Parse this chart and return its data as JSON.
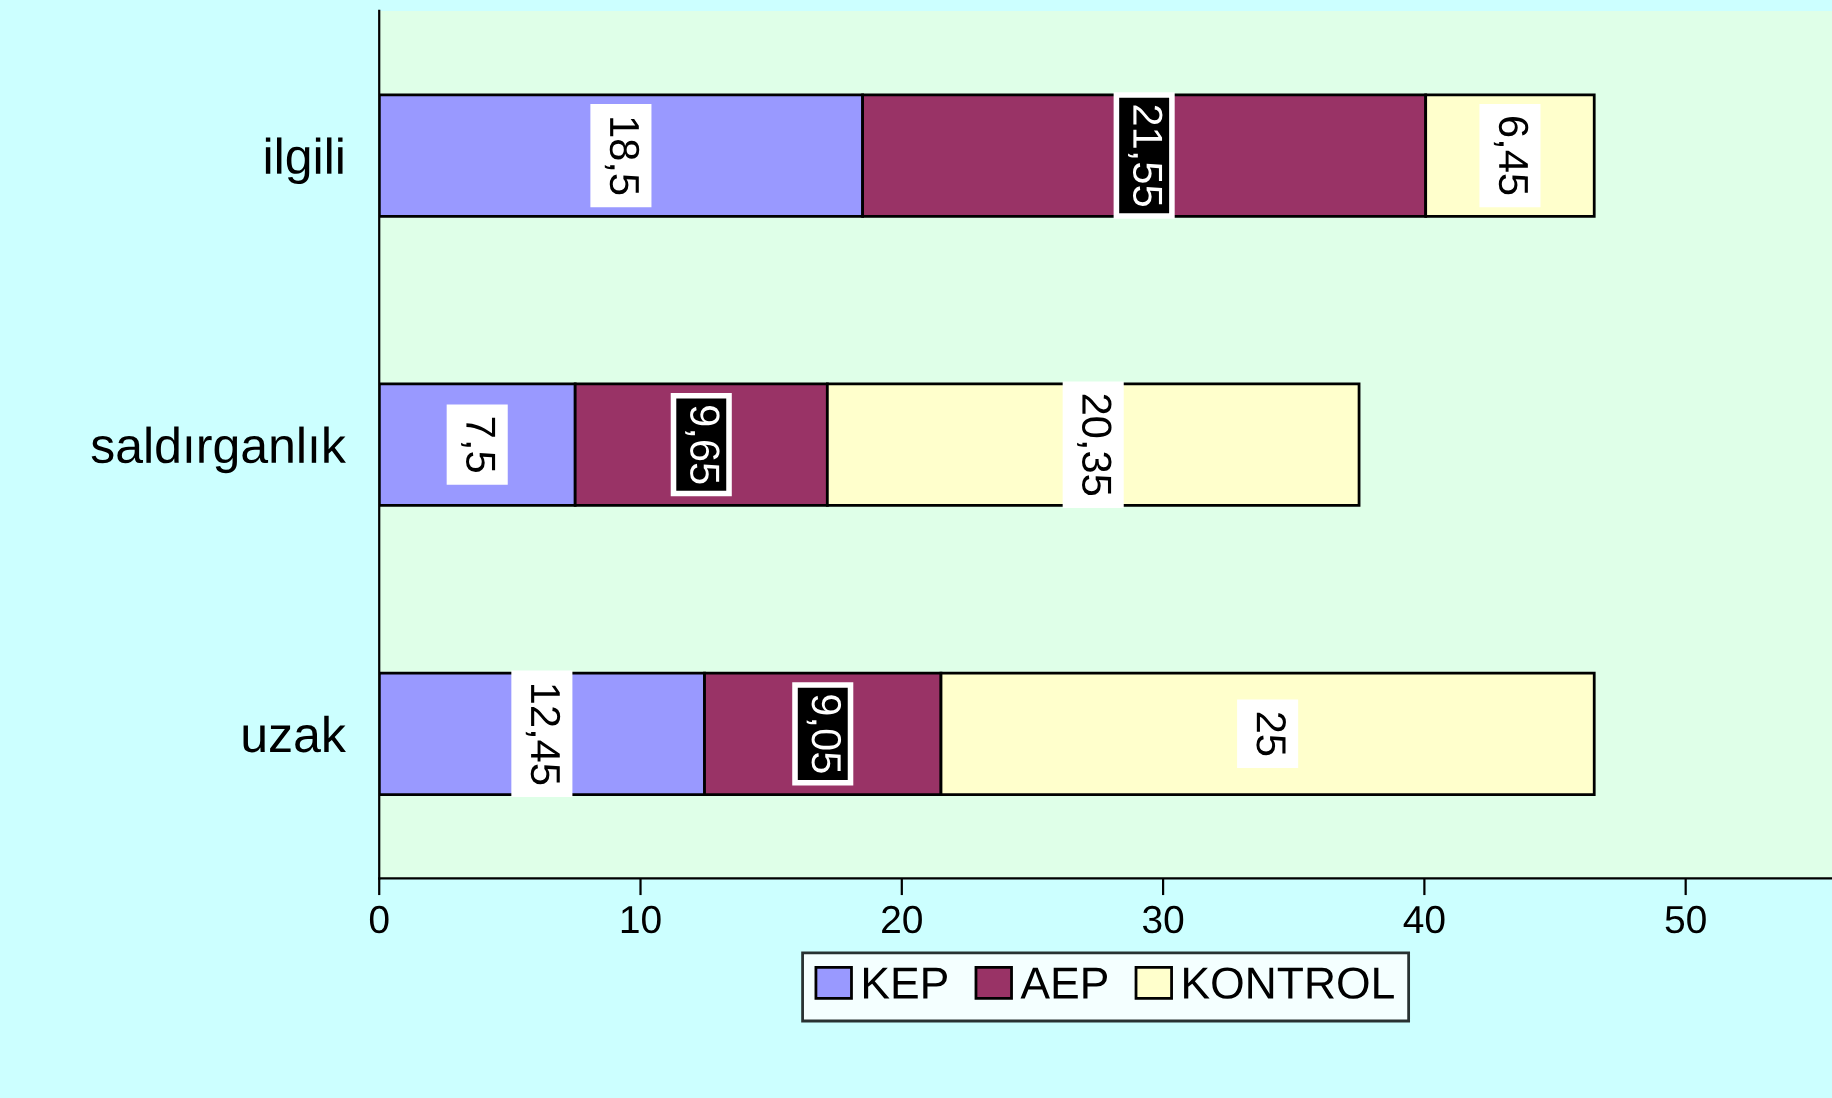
{
  "chart_data": {
    "type": "bar",
    "orientation": "horizontal",
    "stacked": true,
    "categories": [
      "ilgili",
      "saldırganlık",
      "uzak"
    ],
    "series": [
      {
        "name": "KEP",
        "color": "#9999ff",
        "values": [
          18.5,
          7.5,
          12.45
        ],
        "value_labels": [
          "18,5",
          "7,5",
          "12,45"
        ]
      },
      {
        "name": "AEP",
        "color": "#993366",
        "values": [
          21.55,
          9.65,
          9.05
        ],
        "value_labels": [
          "21,55",
          "9,65",
          "9,05"
        ]
      },
      {
        "name": "KONTROL",
        "color": "#ffffcc",
        "values": [
          6.45,
          20.35,
          25
        ],
        "value_labels": [
          "6,45",
          "20,35",
          "25"
        ]
      }
    ],
    "xlim": [
      0,
      55.6
    ],
    "xticks": [
      0,
      10,
      20,
      30,
      40,
      50
    ],
    "grid": false,
    "legend": "bottom"
  }
}
